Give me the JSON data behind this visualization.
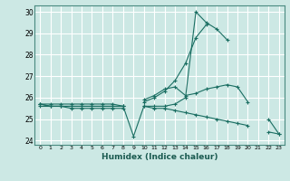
{
  "xlabel": "Humidex (Indice chaleur)",
  "bg_color": "#cce8e4",
  "grid_color": "#ffffff",
  "line_color": "#1a6e62",
  "xlim": [
    -0.5,
    23.5
  ],
  "ylim": [
    23.8,
    30.3
  ],
  "yticks": [
    24,
    25,
    26,
    27,
    28,
    29,
    30
  ],
  "xticks": [
    0,
    1,
    2,
    3,
    4,
    5,
    6,
    7,
    8,
    9,
    10,
    11,
    12,
    13,
    14,
    15,
    16,
    17,
    18,
    19,
    20,
    21,
    22,
    23
  ],
  "series": [
    [
      25.7,
      25.6,
      25.6,
      25.6,
      25.6,
      25.6,
      25.6,
      25.6,
      25.6,
      24.2,
      25.6,
      25.6,
      25.6,
      25.7,
      26.0,
      30.0,
      29.5,
      29.2,
      28.7,
      null,
      null,
      null,
      null,
      null
    ],
    [
      25.7,
      25.7,
      25.7,
      25.7,
      25.7,
      25.7,
      25.7,
      25.7,
      25.6,
      null,
      25.8,
      26.0,
      26.3,
      26.8,
      27.6,
      28.8,
      29.4,
      null,
      null,
      null,
      null,
      null,
      null,
      null
    ],
    [
      25.7,
      25.6,
      25.6,
      25.5,
      25.5,
      25.5,
      25.5,
      25.5,
      25.5,
      null,
      25.9,
      26.1,
      26.4,
      26.5,
      26.1,
      26.2,
      26.4,
      26.5,
      26.6,
      26.5,
      25.8,
      null,
      25.0,
      24.3
    ],
    [
      25.6,
      25.6,
      25.6,
      25.6,
      25.6,
      25.6,
      25.6,
      25.6,
      25.6,
      null,
      25.6,
      25.5,
      25.5,
      25.4,
      25.3,
      25.2,
      25.1,
      25.0,
      24.9,
      24.8,
      24.7,
      null,
      24.4,
      24.3
    ]
  ]
}
